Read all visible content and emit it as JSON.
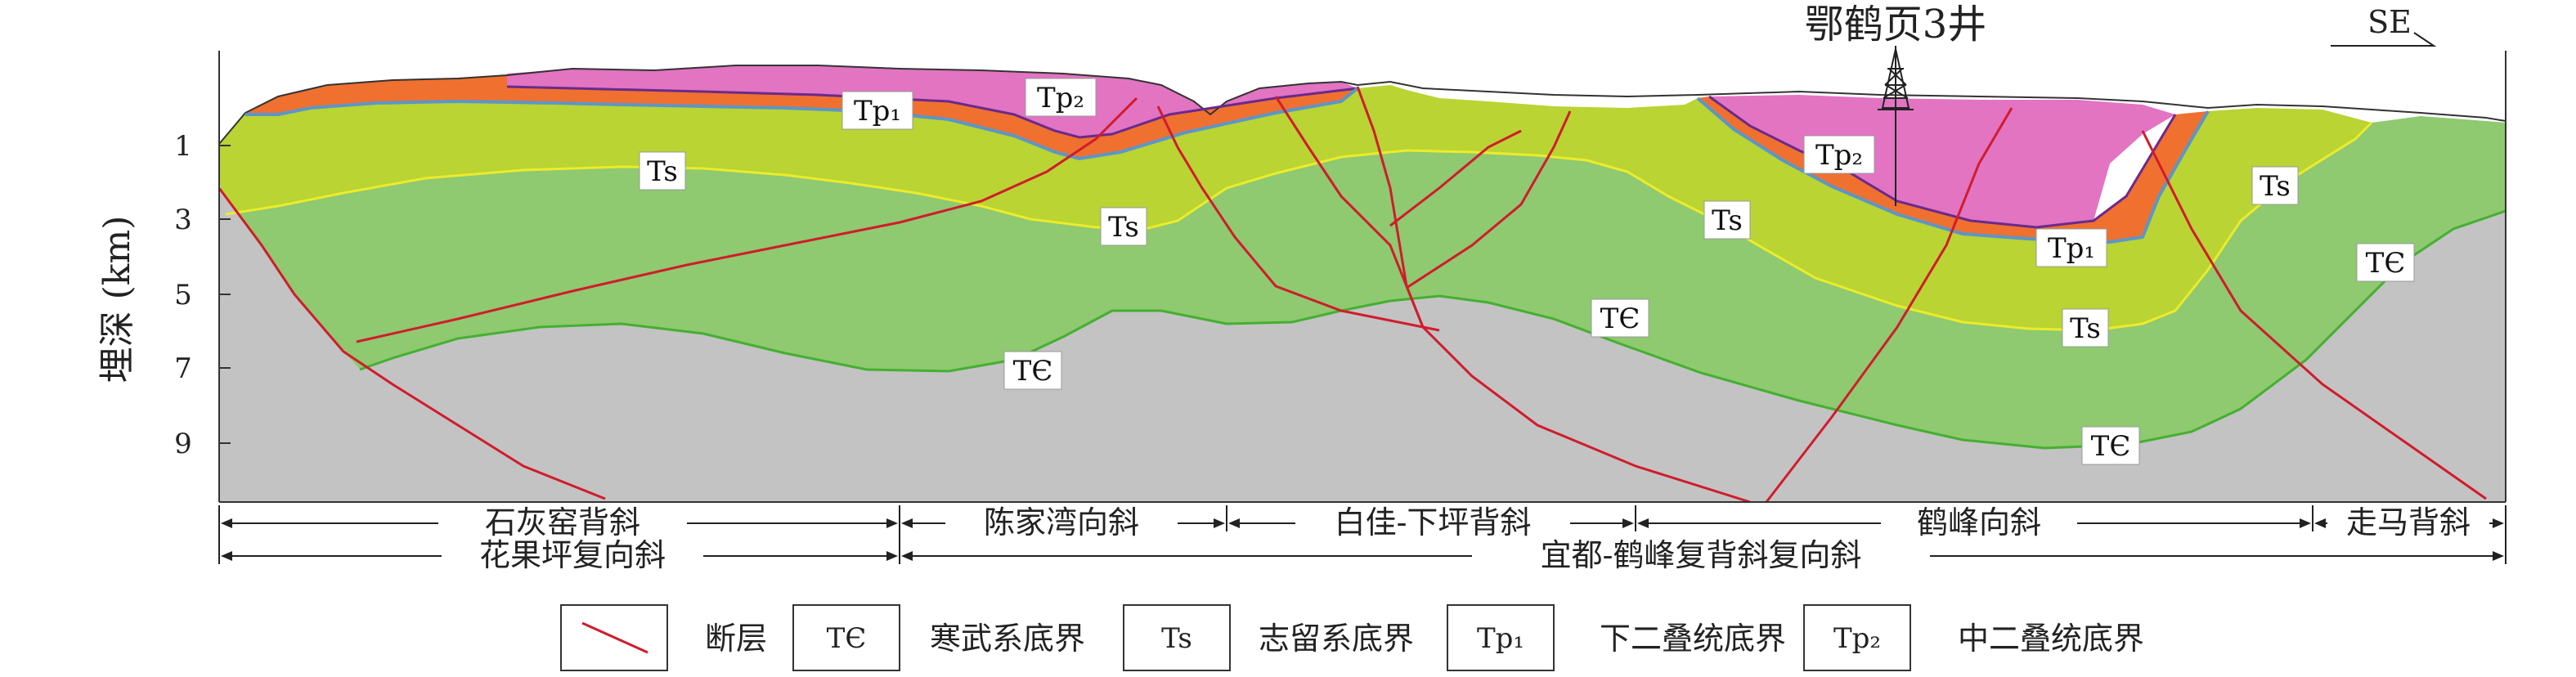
{
  "well": {
    "name": "鄂鹤页3井"
  },
  "direction": "SE",
  "yaxis": {
    "label": "埋深 (km)",
    "ticks": [
      "1",
      "3",
      "5",
      "7",
      "9"
    ]
  },
  "formation_labels": {
    "tp1_a": "Tp₁",
    "tp2_a": "Tp₂",
    "ts_a": "Ts",
    "ts_b": "Ts",
    "tp2_b": "Tp₂",
    "ts_c": "Ts",
    "tp1_b": "Tp₁",
    "ts_d": "Ts",
    "ts_e": "Ts",
    "te_a": "TЄ",
    "te_b": "TЄ",
    "te_c": "TЄ",
    "te_d": "TЄ"
  },
  "structures": {
    "row1": [
      "石灰窑背斜",
      "陈家湾向斜",
      "白佳-下坪背斜",
      "鹤峰向斜",
      "走马背斜"
    ],
    "row2": [
      "花果坪复向斜",
      "宜都-鹤峰复背斜复向斜"
    ]
  },
  "legend": {
    "fault": "断层",
    "te_symbol": "TЄ",
    "te_text": "寒武系底界",
    "ts_symbol": "Ts",
    "ts_text": "志留系底界",
    "tp1_symbol": "Tp₁",
    "tp1_text": "下二叠统底界",
    "tp2_symbol": "Tp₂",
    "tp2_text": "中二叠统底界"
  },
  "colors": {
    "basement": "#c3c3c3",
    "cambrian_silurian": "#8fc970",
    "silurian_permian": "#b9d433",
    "permian_lower": "#f07030",
    "permian_upper": "#e274c2",
    "fault_line": "#d01c2c",
    "te_line": "#44b030",
    "ts_line": "#ecec2a",
    "tp1_line": "#5b96c8",
    "tp2_line": "#6a2a8c"
  }
}
